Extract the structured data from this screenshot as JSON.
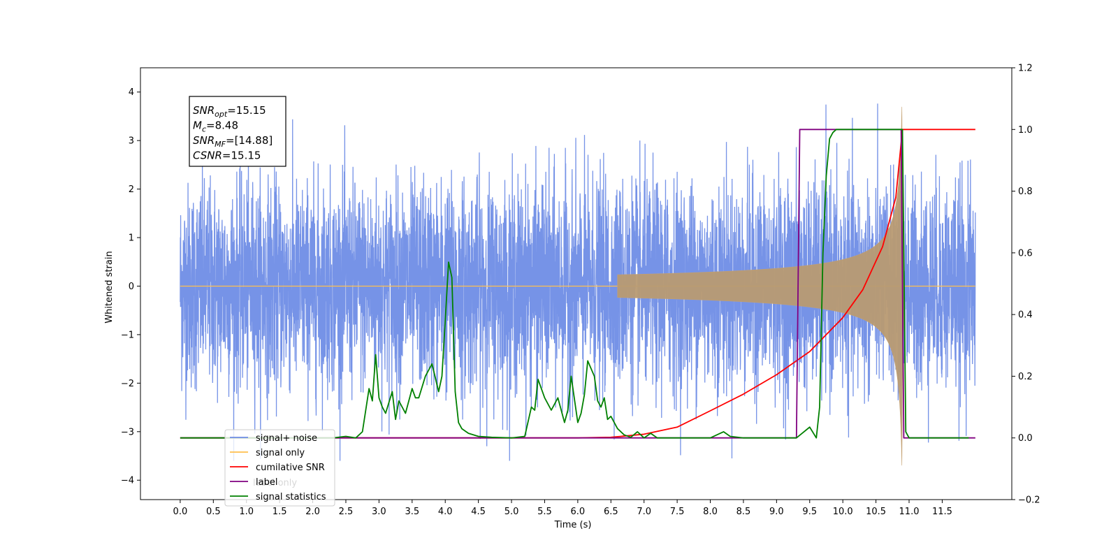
{
  "chart_data": {
    "type": "line",
    "title": "",
    "xlabel": "Time (s)",
    "ylabel": "Whitened strain",
    "y2label": "",
    "xlim": [
      -0.6,
      12.55
    ],
    "ylim": [
      -4.4,
      4.5
    ],
    "y2lim": [
      -0.2,
      1.2
    ],
    "x_ticks": [
      0.0,
      0.5,
      1.0,
      1.5,
      2.0,
      2.5,
      3.0,
      3.5,
      4.0,
      4.5,
      5.0,
      5.5,
      6.0,
      6.5,
      7.0,
      7.5,
      8.0,
      8.5,
      9.0,
      9.5,
      10.0,
      10.5,
      11.0,
      11.5
    ],
    "x_tick_labels": [
      "0.0",
      "0.5",
      "1.0",
      "1.5",
      "2.0",
      "2.5",
      "3.0",
      "3.5",
      "4.0",
      "4.5",
      "5.0",
      "5.5",
      "6.0",
      "6.5",
      "7.0",
      "7.5",
      "8.0",
      "8.5",
      "9.0",
      "9.5",
      "10.0",
      "10.5",
      "11.0",
      "11.5"
    ],
    "y_ticks": [
      -4,
      -3,
      -2,
      -1,
      0,
      1,
      2,
      3,
      4
    ],
    "y_tick_labels": [
      "−4",
      "−3",
      "−2",
      "−1",
      "0",
      "1",
      "2",
      "3",
      "4"
    ],
    "y2_ticks": [
      -0.2,
      0.0,
      0.2,
      0.4,
      0.6,
      0.8,
      1.0,
      1.2
    ],
    "y2_tick_labels": [
      "−0.2",
      "0.0",
      "0.2",
      "0.4",
      "0.6",
      "0.8",
      "1.0",
      "1.2"
    ],
    "grid": false,
    "legend_position": "lower-left",
    "legend": [
      {
        "label": "signal+ noise",
        "color": "#6f8de6"
      },
      {
        "label": "signal only",
        "color": "#ffbf4d"
      },
      {
        "label": "cumilative SNR",
        "color": "#ff0000"
      },
      {
        "label": "label",
        "color": "#800080"
      },
      {
        "label": "signal statistics",
        "color": "#008000"
      }
    ],
    "legend_hidden_text": [
      "label only"
    ],
    "annotation_lines": [
      {
        "prefix": "SNR",
        "sub": "opt",
        "value": "=15.15"
      },
      {
        "prefix": "M",
        "sub": "c",
        "value": "=8.48"
      },
      {
        "prefix": "SNR",
        "sub": "MF",
        "value": "=[14.88]"
      },
      {
        "prefix": "CSNR",
        "sub": "",
        "value": "=15.15"
      }
    ],
    "series": [
      {
        "name": "signal+ noise",
        "axis": "left",
        "color": "#6f8de6",
        "x_range": [
          0.0,
          12.0
        ],
        "noise_envelope": [
          -3.6,
          4.1
        ]
      },
      {
        "name": "signal only",
        "axis": "left",
        "color": "#ffbf4d",
        "chirp_start": 6.6,
        "merger_time": 10.9,
        "peak_amplitude": 1.95
      },
      {
        "name": "cumilative SNR",
        "axis": "right",
        "color": "#ff0000",
        "x": [
          0.0,
          6.0,
          6.5,
          7.0,
          7.5,
          8.0,
          8.5,
          9.0,
          9.5,
          10.0,
          10.3,
          10.6,
          10.8,
          10.9,
          12.0
        ],
        "y": [
          0.0,
          0.0,
          0.002,
          0.012,
          0.035,
          0.088,
          0.142,
          0.205,
          0.28,
          0.39,
          0.48,
          0.62,
          0.78,
          1.0,
          1.0
        ]
      },
      {
        "name": "label",
        "axis": "right",
        "color": "#800080",
        "x": [
          0.0,
          9.3,
          9.35,
          10.88,
          10.92,
          12.0
        ],
        "y": [
          0.0,
          0.0,
          1.0,
          1.0,
          0.0,
          0.0
        ]
      },
      {
        "name": "signal statistics",
        "axis": "right",
        "color": "#008000",
        "x": [
          0.0,
          2.3,
          2.5,
          2.65,
          2.75,
          2.8,
          2.85,
          2.9,
          2.95,
          3.0,
          3.05,
          3.1,
          3.2,
          3.25,
          3.3,
          3.4,
          3.5,
          3.55,
          3.6,
          3.7,
          3.8,
          3.9,
          3.95,
          4.0,
          4.05,
          4.1,
          4.15,
          4.2,
          4.25,
          4.35,
          4.5,
          4.7,
          5.0,
          5.2,
          5.3,
          5.35,
          5.4,
          5.5,
          5.6,
          5.7,
          5.8,
          5.85,
          5.9,
          6.0,
          6.05,
          6.1,
          6.15,
          6.25,
          6.3,
          6.35,
          6.4,
          6.45,
          6.5,
          6.6,
          6.7,
          6.8,
          6.9,
          7.0,
          7.1,
          7.2,
          7.5,
          8.0,
          8.1,
          8.2,
          8.3,
          8.5,
          9.0,
          9.3,
          9.5,
          9.6,
          9.65,
          9.7,
          9.75,
          9.8,
          9.85,
          9.9,
          9.95,
          10.0,
          10.1,
          10.9,
          10.95,
          11.0,
          11.9
        ],
        "y": [
          0.0,
          0.0,
          0.005,
          0.0,
          0.02,
          0.09,
          0.16,
          0.12,
          0.27,
          0.13,
          0.1,
          0.08,
          0.15,
          0.06,
          0.12,
          0.08,
          0.16,
          0.13,
          0.13,
          0.2,
          0.24,
          0.15,
          0.2,
          0.38,
          0.57,
          0.52,
          0.15,
          0.05,
          0.03,
          0.015,
          0.005,
          0.002,
          0.0,
          0.005,
          0.1,
          0.09,
          0.19,
          0.13,
          0.09,
          0.13,
          0.05,
          0.09,
          0.2,
          0.05,
          0.08,
          0.14,
          0.25,
          0.2,
          0.12,
          0.1,
          0.13,
          0.06,
          0.07,
          0.03,
          0.01,
          0.002,
          0.02,
          0.0,
          0.015,
          0.0,
          0.0,
          0.0,
          0.01,
          0.02,
          0.005,
          0.0,
          0.0,
          0.0,
          0.035,
          0.0,
          0.1,
          0.6,
          0.85,
          0.97,
          0.99,
          1.0,
          1.0,
          1.0,
          1.0,
          1.0,
          0.02,
          0.0,
          0.0
        ]
      }
    ]
  }
}
